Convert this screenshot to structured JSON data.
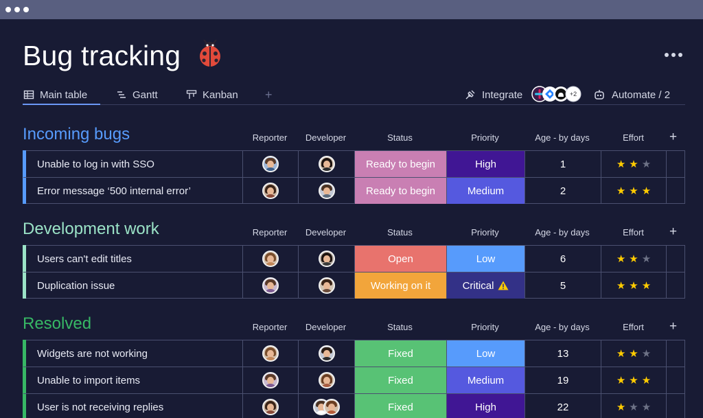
{
  "window": {
    "controls": [
      "dot",
      "dot",
      "dot"
    ]
  },
  "board": {
    "title": "Bug tracking",
    "emoji_icon": "ladybug-icon"
  },
  "tabs": [
    {
      "label": "Main table",
      "icon": "table-icon",
      "active": true
    },
    {
      "label": "Gantt",
      "icon": "gantt-icon",
      "active": false
    },
    {
      "label": "Kanban",
      "icon": "kanban-icon",
      "active": false
    }
  ],
  "toolbar": {
    "add_tab": "+",
    "integrate_label": "Integrate",
    "integration_more": "+2",
    "automate_label": "Automate / 2"
  },
  "columns": {
    "reporter": "Reporter",
    "developer": "Developer",
    "status": "Status",
    "priority": "Priority",
    "age": "Age - by days",
    "effort": "Effort",
    "add": "+"
  },
  "colors": {
    "incoming": "#579bfc",
    "development": "#4eccc6",
    "resolved": "#37b865",
    "ready_to_begin": "#c97fb3",
    "open": "#e8736d",
    "working_on_it": "#f2a53b",
    "fixed": "#58c275",
    "high": "#401694",
    "medium": "#5559df",
    "low": "#579bfc",
    "critical": "#333187",
    "star_on": "#ffcb00",
    "star_off": "#6d7286"
  },
  "groups": [
    {
      "title": "Incoming bugs",
      "color": "#579bfc",
      "items": [
        {
          "name": "Unable to log in with SSO",
          "status": "Ready to begin",
          "status_color": "#c97fb3",
          "priority": "High",
          "priority_color": "#401694",
          "age": "1",
          "effort": 2
        },
        {
          "name": "Error message ‘500 internal error’",
          "status": "Ready to begin",
          "status_color": "#c97fb3",
          "priority": "Medium",
          "priority_color": "#5559df",
          "age": "2",
          "effort": 3
        }
      ]
    },
    {
      "title": "Development work",
      "color": "#9be3c7",
      "items": [
        {
          "name": "Users can't edit titles",
          "status": "Open",
          "status_color": "#e8736d",
          "priority": "Low",
          "priority_color": "#579bfc",
          "age": "6",
          "effort": 2
        },
        {
          "name": "Duplication issue",
          "status": "Working on it",
          "status_color": "#f2a53b",
          "priority": "Critical",
          "priority_color": "#333187",
          "priority_icon": "warning-icon",
          "age": "5",
          "effort": 3
        }
      ]
    },
    {
      "title": "Resolved",
      "color": "#37b865",
      "items": [
        {
          "name": "Widgets are not working",
          "status": "Fixed",
          "status_color": "#58c275",
          "priority": "Low",
          "priority_color": "#579bfc",
          "age": "13",
          "effort": 2
        },
        {
          "name": "Unable to import items",
          "status": "Fixed",
          "status_color": "#58c275",
          "priority": "Medium",
          "priority_color": "#5559df",
          "age": "19",
          "effort": 3
        },
        {
          "name": "User is not receiving replies",
          "status": "Fixed",
          "status_color": "#58c275",
          "priority": "High",
          "priority_color": "#401694",
          "age": "22",
          "effort": 1
        }
      ]
    }
  ]
}
